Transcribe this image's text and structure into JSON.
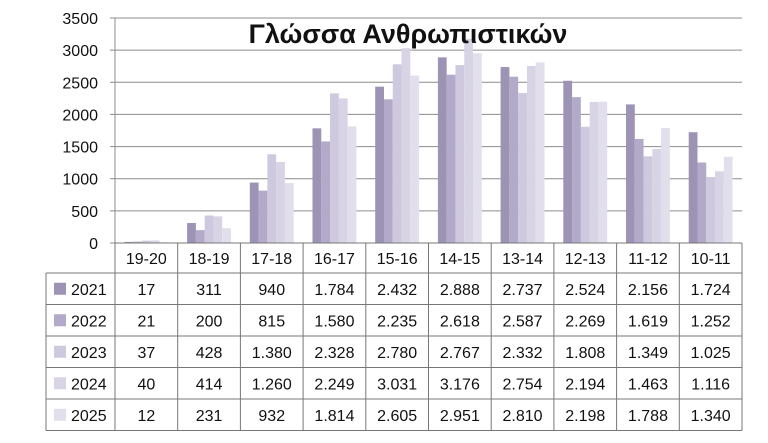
{
  "chart_data": {
    "type": "bar",
    "title": "Γλώσσα Ανθρωπιστικών",
    "xlabel": "",
    "ylabel": "",
    "ylim": [
      0,
      3500
    ],
    "y_ticks": [
      "0",
      "500",
      "1000",
      "1500",
      "2000",
      "2500",
      "3000",
      "3500"
    ],
    "grid": true,
    "legend": "data-table",
    "categories": [
      "19-20",
      "18-19",
      "17-18",
      "16-17",
      "15-16",
      "14-15",
      "13-14",
      "12-13",
      "11-12",
      "10-11"
    ],
    "series": [
      {
        "name": "2021",
        "color": "#9d93b5",
        "values": [
          17,
          311,
          940,
          1784,
          2432,
          2888,
          2737,
          2524,
          2156,
          1724
        ],
        "labels": [
          "17",
          "311",
          "940",
          "1.784",
          "2.432",
          "2.888",
          "2.737",
          "2.524",
          "2.156",
          "1.724"
        ]
      },
      {
        "name": "2022",
        "color": "#b2aac8",
        "values": [
          21,
          200,
          815,
          1580,
          2235,
          2618,
          2587,
          2269,
          1619,
          1252
        ],
        "labels": [
          "21",
          "200",
          "815",
          "1.580",
          "2.235",
          "2.618",
          "2.587",
          "2.269",
          "1.619",
          "1.252"
        ]
      },
      {
        "name": "2023",
        "color": "#cec9df",
        "values": [
          37,
          428,
          1380,
          2328,
          2780,
          2767,
          2332,
          1808,
          1349,
          1025
        ],
        "labels": [
          "37",
          "428",
          "1.380",
          "2.328",
          "2.780",
          "2.767",
          "2.332",
          "1.808",
          "1.349",
          "1.025"
        ]
      },
      {
        "name": "2024",
        "color": "#d8d4e6",
        "values": [
          40,
          414,
          1260,
          2249,
          3031,
          3176,
          2754,
          2194,
          1463,
          1116
        ],
        "labels": [
          "40",
          "414",
          "1.260",
          "2.249",
          "3.031",
          "3.176",
          "2.754",
          "2.194",
          "1.463",
          "1.116"
        ]
      },
      {
        "name": "2025",
        "color": "#e2dfec",
        "values": [
          12,
          231,
          932,
          1814,
          2605,
          2951,
          2810,
          2198,
          1788,
          1340
        ],
        "labels": [
          "12",
          "231",
          "932",
          "1.814",
          "2.605",
          "2.951",
          "2.810",
          "2.198",
          "1.788",
          "1.340"
        ]
      }
    ]
  }
}
